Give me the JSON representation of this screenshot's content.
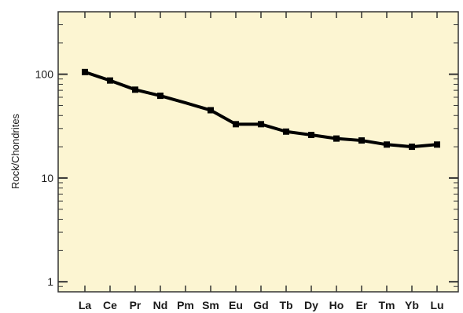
{
  "chart_data": {
    "type": "line",
    "title": "",
    "xlabel": "",
    "ylabel": "Rock/Chondrites",
    "yscale": "log",
    "ylim": [
      0.8,
      400
    ],
    "yticks": [
      {
        "value": 1,
        "label": "1"
      },
      {
        "value": 10,
        "label": "10"
      },
      {
        "value": 100,
        "label": "100"
      }
    ],
    "categories": [
      "La",
      "Ce",
      "Pr",
      "Nd",
      "Pm",
      "Sm",
      "Eu",
      "Gd",
      "Tb",
      "Dy",
      "Ho",
      "Er",
      "Tm",
      "Yb",
      "Lu"
    ],
    "series": [
      {
        "values": [
          105,
          87,
          71,
          62,
          53,
          45,
          33,
          33,
          28,
          26,
          24,
          23,
          21,
          20,
          21
        ],
        "markers": [
          true,
          true,
          true,
          true,
          false,
          true,
          true,
          true,
          true,
          true,
          true,
          true,
          true,
          true,
          true
        ]
      }
    ],
    "grid": false,
    "legend": "none",
    "colors": {
      "plot_background": "#fcf5d2",
      "line": "#000000",
      "axis": "#333333"
    }
  }
}
